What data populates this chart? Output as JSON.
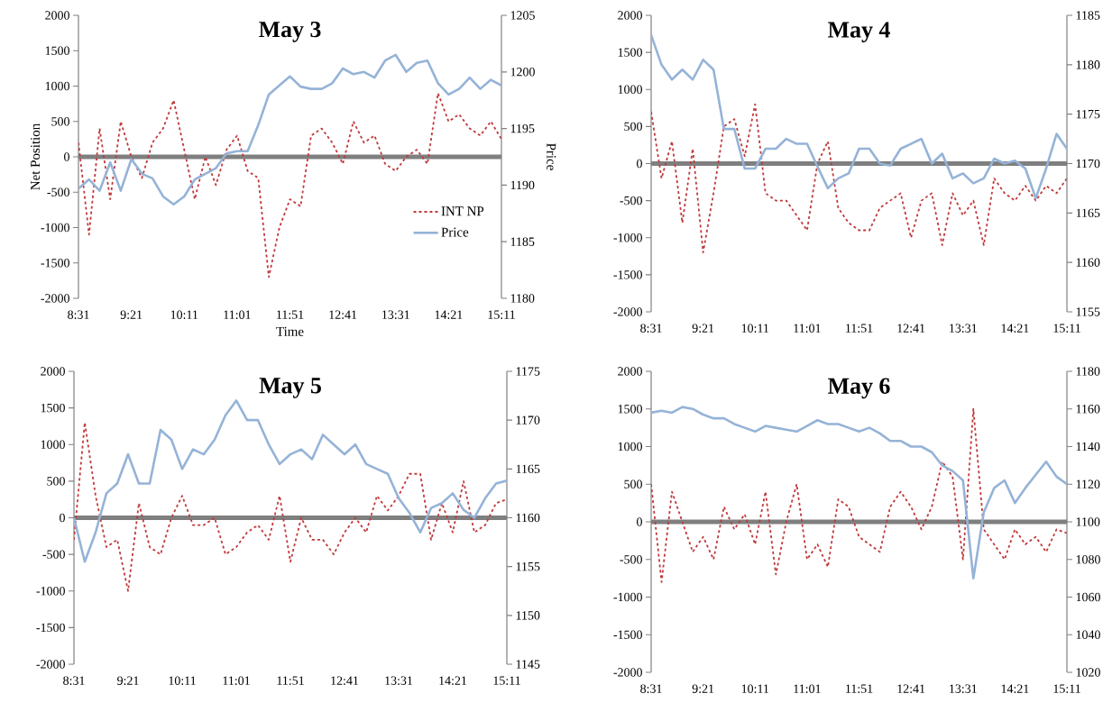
{
  "chart_data": [
    {
      "type": "line",
      "title": "May 3",
      "xlabel": "Time",
      "ylabel": "Net Position",
      "y2label": "Price",
      "legend": "bottom right",
      "x": [
        8.5167,
        8.6833,
        8.85,
        9.0167,
        9.1833,
        9.35,
        9.5167,
        9.6833,
        9.85,
        10.0167,
        10.1833,
        10.35,
        10.5167,
        10.6833,
        10.85,
        11.0167,
        11.1833,
        11.35,
        11.5167,
        11.6833,
        11.85,
        12.0167,
        12.1833,
        12.35,
        12.5167,
        12.6833,
        12.85,
        13.0167,
        13.1833,
        13.35,
        13.5167,
        13.6833,
        13.85,
        14.0167,
        14.1833,
        14.35,
        14.5167,
        14.6833,
        14.85,
        15.0167,
        15.1833
      ],
      "xlim": [
        8.5167,
        15.1833
      ],
      "xticks": [
        {
          "value": 8.5167,
          "label": "8:31"
        },
        {
          "value": 9.35,
          "label": "9:21"
        },
        {
          "value": 10.1833,
          "label": "10:11"
        },
        {
          "value": 11.0167,
          "label": "11:01"
        },
        {
          "value": 11.85,
          "label": "11:51"
        },
        {
          "value": 12.6833,
          "label": "12:41"
        },
        {
          "value": 13.5167,
          "label": "13:31"
        },
        {
          "value": 14.35,
          "label": "14:21"
        },
        {
          "value": 15.1833,
          "label": "15:11"
        }
      ],
      "ylim": [
        -2000,
        2000
      ],
      "yticks": [
        -2000,
        -1500,
        -1000,
        -500,
        0,
        500,
        1000,
        1500,
        2000
      ],
      "y2lim": [
        1180,
        1205
      ],
      "y2ticks": [
        1180,
        1185,
        1190,
        1195,
        1200,
        1205
      ],
      "ref_lines": [
        {
          "axis": "y",
          "value": 0,
          "color": "#7f7f7f"
        }
      ],
      "series": [
        {
          "name": "INT NP",
          "color": "#c0393b",
          "line_style": "dashed",
          "values": [
            200,
            -1100,
            400,
            -600,
            500,
            0,
            -300,
            200,
            400,
            800,
            100,
            -600,
            0,
            -400,
            100,
            300,
            -200,
            -300,
            -1700,
            -1000,
            -600,
            -700,
            300,
            400,
            200,
            -100,
            500,
            200,
            300,
            -100,
            -200,
            0,
            100,
            -100,
            900,
            500,
            600,
            400,
            300,
            500,
            250
          ]
        },
        {
          "name": "Price",
          "color": "#95b3d7",
          "axis": "y2",
          "line_style": "solid",
          "values": [
            1189.7,
            1190.5,
            1189.5,
            1192,
            1189.5,
            1192.3,
            1191,
            1190.6,
            1189,
            1188.3,
            1189,
            1190.5,
            1191,
            1191.5,
            1192.8,
            1193,
            1193,
            1195.3,
            1198,
            1198.8,
            1199.6,
            1198.7,
            1198.5,
            1198.5,
            1199,
            1200.3,
            1199.8,
            1200,
            1199.5,
            1201,
            1201.5,
            1200,
            1200.8,
            1201,
            1199,
            1198,
            1198.5,
            1199.5,
            1198.5,
            1199.3,
            1198.8
          ]
        }
      ]
    },
    {
      "type": "line",
      "title": "May 4",
      "x": [
        8.5167,
        8.6833,
        8.85,
        9.0167,
        9.1833,
        9.35,
        9.5167,
        9.6833,
        9.85,
        10.0167,
        10.1833,
        10.35,
        10.5167,
        10.6833,
        10.85,
        11.0167,
        11.1833,
        11.35,
        11.5167,
        11.6833,
        11.85,
        12.0167,
        12.1833,
        12.35,
        12.5167,
        12.6833,
        12.85,
        13.0167,
        13.1833,
        13.35,
        13.5167,
        13.6833,
        13.85,
        14.0167,
        14.1833,
        14.35,
        14.5167,
        14.6833,
        14.85,
        15.0167,
        15.1833
      ],
      "xlim": [
        8.5167,
        15.1833
      ],
      "xticks": [
        {
          "value": 8.5167,
          "label": "8:31"
        },
        {
          "value": 9.35,
          "label": "9:21"
        },
        {
          "value": 10.1833,
          "label": "10:11"
        },
        {
          "value": 11.0167,
          "label": "11:01"
        },
        {
          "value": 11.85,
          "label": "11:51"
        },
        {
          "value": 12.6833,
          "label": "12:41"
        },
        {
          "value": 13.5167,
          "label": "13:31"
        },
        {
          "value": 14.35,
          "label": "14:21"
        },
        {
          "value": 15.1833,
          "label": "15:11"
        }
      ],
      "ylim": [
        -2000,
        2000
      ],
      "yticks": [
        -2000,
        -1500,
        -1000,
        -500,
        0,
        500,
        1000,
        1500,
        2000
      ],
      "y2lim": [
        1155,
        1185
      ],
      "y2ticks": [
        1155,
        1160,
        1165,
        1170,
        1175,
        1180,
        1185
      ],
      "ref_lines": [
        {
          "axis": "y",
          "value": 0,
          "color": "#7f7f7f"
        }
      ],
      "series": [
        {
          "color": "#c0393b",
          "line_style": "dashed",
          "values": [
            700,
            -200,
            300,
            -800,
            200,
            -1200,
            -400,
            500,
            600,
            100,
            800,
            -400,
            -500,
            -500,
            -700,
            -900,
            0,
            300,
            -600,
            -800,
            -900,
            -900,
            -600,
            -500,
            -400,
            -1000,
            -500,
            -400,
            -1100,
            -400,
            -700,
            -500,
            -1100,
            -200,
            -400,
            -500,
            -300,
            -500,
            -300,
            -400,
            -200
          ]
        },
        {
          "color": "#95b3d7",
          "axis": "y2",
          "line_style": "solid",
          "values": [
            1183,
            1180,
            1178.5,
            1179.5,
            1178.5,
            1180.5,
            1179.5,
            1173.5,
            1173.5,
            1169.5,
            1169.5,
            1171.5,
            1171.5,
            1172.5,
            1172,
            1172,
            1169.7,
            1167.5,
            1168.5,
            1169,
            1171.5,
            1171.5,
            1170,
            1169.8,
            1171.5,
            1172,
            1172.5,
            1170,
            1171,
            1168.5,
            1169,
            1168,
            1168.5,
            1170.5,
            1170,
            1170.3,
            1169.5,
            1166.5,
            1169.5,
            1173,
            1171.5
          ]
        }
      ]
    },
    {
      "type": "line",
      "title": "May 5",
      "x": [
        8.5167,
        8.6833,
        8.85,
        9.0167,
        9.1833,
        9.35,
        9.5167,
        9.6833,
        9.85,
        10.0167,
        10.1833,
        10.35,
        10.5167,
        10.6833,
        10.85,
        11.0167,
        11.1833,
        11.35,
        11.5167,
        11.6833,
        11.85,
        12.0167,
        12.1833,
        12.35,
        12.5167,
        12.6833,
        12.85,
        13.0167,
        13.1833,
        13.35,
        13.5167,
        13.6833,
        13.85,
        14.0167,
        14.1833,
        14.35,
        14.5167,
        14.6833,
        14.85,
        15.0167,
        15.1833
      ],
      "xlim": [
        8.5167,
        15.1833
      ],
      "xticks": [
        {
          "value": 8.5167,
          "label": "8:31"
        },
        {
          "value": 9.35,
          "label": "9:21"
        },
        {
          "value": 10.1833,
          "label": "10:11"
        },
        {
          "value": 11.0167,
          "label": "11:01"
        },
        {
          "value": 11.85,
          "label": "11:51"
        },
        {
          "value": 12.6833,
          "label": "12:41"
        },
        {
          "value": 13.5167,
          "label": "13:31"
        },
        {
          "value": 14.35,
          "label": "14:21"
        },
        {
          "value": 15.1833,
          "label": "15:11"
        }
      ],
      "ylim": [
        -2000,
        2000
      ],
      "yticks": [
        -2000,
        -1500,
        -1000,
        -500,
        0,
        500,
        1000,
        1500,
        2000
      ],
      "y2lim": [
        1145,
        1175
      ],
      "y2ticks": [
        1145,
        1150,
        1155,
        1160,
        1165,
        1170,
        1175
      ],
      "ref_lines": [
        {
          "axis": "y",
          "value": 0,
          "color": "#7f7f7f"
        }
      ],
      "series": [
        {
          "color": "#c0393b",
          "line_style": "dashed",
          "values": [
            -300,
            1300,
            300,
            -400,
            -300,
            -1000,
            200,
            -400,
            -500,
            0,
            300,
            -100,
            -100,
            0,
            -500,
            -400,
            -200,
            -100,
            -300,
            300,
            -600,
            0,
            -300,
            -300,
            -500,
            -200,
            0,
            -200,
            300,
            100,
            300,
            600,
            600,
            -300,
            200,
            -200,
            500,
            -200,
            -100,
            200,
            250
          ]
        },
        {
          "color": "#95b3d7",
          "axis": "y2",
          "line_style": "solid",
          "values": [
            1160,
            1155.5,
            1158.5,
            1162.5,
            1163.5,
            1166.5,
            1163.5,
            1163.5,
            1169,
            1168,
            1165,
            1167,
            1166.5,
            1168,
            1170.5,
            1172,
            1170,
            1170,
            1167.5,
            1165.5,
            1166.5,
            1167,
            1166,
            1168.5,
            1167.5,
            1166.5,
            1167.5,
            1165.5,
            1165,
            1164.5,
            1162,
            1160.5,
            1158.5,
            1161,
            1161.5,
            1162.5,
            1160.8,
            1160,
            1162,
            1163.5,
            1163.8
          ]
        }
      ]
    },
    {
      "type": "line",
      "title": "May 6",
      "x": [
        8.5167,
        8.6833,
        8.85,
        9.0167,
        9.1833,
        9.35,
        9.5167,
        9.6833,
        9.85,
        10.0167,
        10.1833,
        10.35,
        10.5167,
        10.6833,
        10.85,
        11.0167,
        11.1833,
        11.35,
        11.5167,
        11.6833,
        11.85,
        12.0167,
        12.1833,
        12.35,
        12.5167,
        12.6833,
        12.85,
        13.0167,
        13.1833,
        13.35,
        13.5167,
        13.6833,
        13.85,
        14.0167,
        14.1833,
        14.35,
        14.5167,
        14.6833,
        14.85,
        15.0167,
        15.1833
      ],
      "xlim": [
        8.5167,
        15.1833
      ],
      "xticks": [
        {
          "value": 8.5167,
          "label": "8:31"
        },
        {
          "value": 9.35,
          "label": "9:21"
        },
        {
          "value": 10.1833,
          "label": "10:11"
        },
        {
          "value": 11.0167,
          "label": "11:01"
        },
        {
          "value": 11.85,
          "label": "11:51"
        },
        {
          "value": 12.6833,
          "label": "12:41"
        },
        {
          "value": 13.5167,
          "label": "13:31"
        },
        {
          "value": 14.35,
          "label": "14:21"
        },
        {
          "value": 15.1833,
          "label": "15:11"
        }
      ],
      "ylim": [
        -2000,
        2000
      ],
      "yticks": [
        -2000,
        -1500,
        -1000,
        -500,
        0,
        500,
        1000,
        1500,
        2000
      ],
      "y2lim": [
        1020,
        1180
      ],
      "y2ticks": [
        1020,
        1040,
        1060,
        1080,
        1100,
        1120,
        1140,
        1160,
        1180
      ],
      "ref_lines": [
        {
          "axis": "y",
          "value": 0,
          "color": "#7f7f7f"
        }
      ],
      "series": [
        {
          "color": "#c0393b",
          "line_style": "dashed",
          "values": [
            500,
            -800,
            400,
            0,
            -400,
            -200,
            -500,
            200,
            -100,
            100,
            -300,
            400,
            -700,
            0,
            500,
            -500,
            -300,
            -600,
            300,
            200,
            -200,
            -300,
            -400,
            200,
            400,
            200,
            -100,
            200,
            800,
            600,
            -500,
            1500,
            -100,
            -300,
            -500,
            -100,
            -300,
            -200,
            -400,
            -100,
            -150
          ]
        },
        {
          "color": "#95b3d7",
          "axis": "y2",
          "line_style": "solid",
          "values": [
            1158,
            1159,
            1158,
            1161,
            1160,
            1157,
            1155,
            1155,
            1152,
            1150,
            1148,
            1151,
            1150,
            1149,
            1148,
            1151,
            1154,
            1152,
            1152,
            1150,
            1148,
            1150,
            1147,
            1143,
            1143,
            1140,
            1140,
            1137,
            1130,
            1127,
            1122,
            1070,
            1105,
            1118,
            1122,
            1110,
            1118,
            1125,
            1132,
            1124,
            1120
          ]
        }
      ]
    }
  ]
}
